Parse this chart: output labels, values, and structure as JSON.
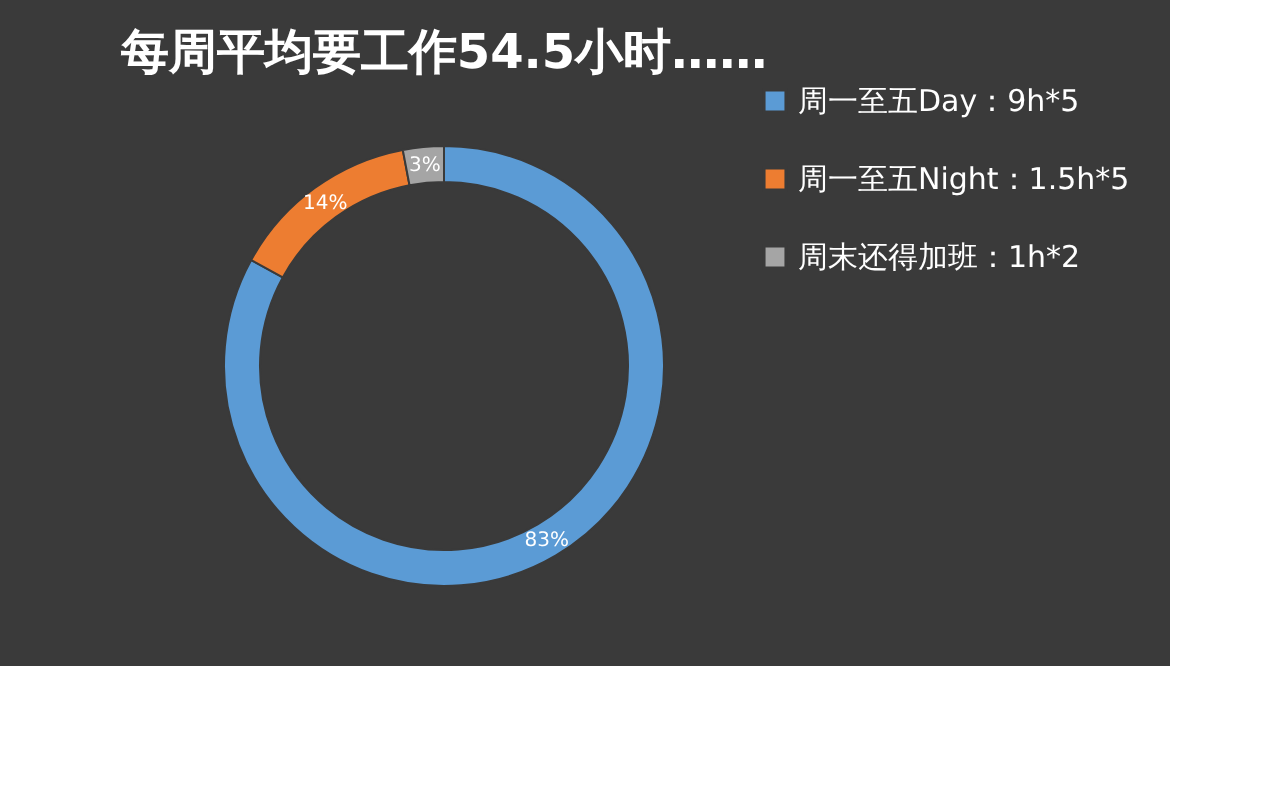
{
  "chart_data": {
    "type": "donut",
    "title": "每周平均要工作54.5小时……",
    "categories": [
      "周一至五Day：9h*5",
      "周一至五Night：1.5h*5",
      "周末还得加班：1h*2"
    ],
    "values": [
      83,
      14,
      3
    ],
    "colors": [
      "#5b9bd5",
      "#ed7d31",
      "#a5a5a5"
    ],
    "value_labels": [
      "83%",
      "14%",
      "3%"
    ],
    "legend": "right"
  }
}
